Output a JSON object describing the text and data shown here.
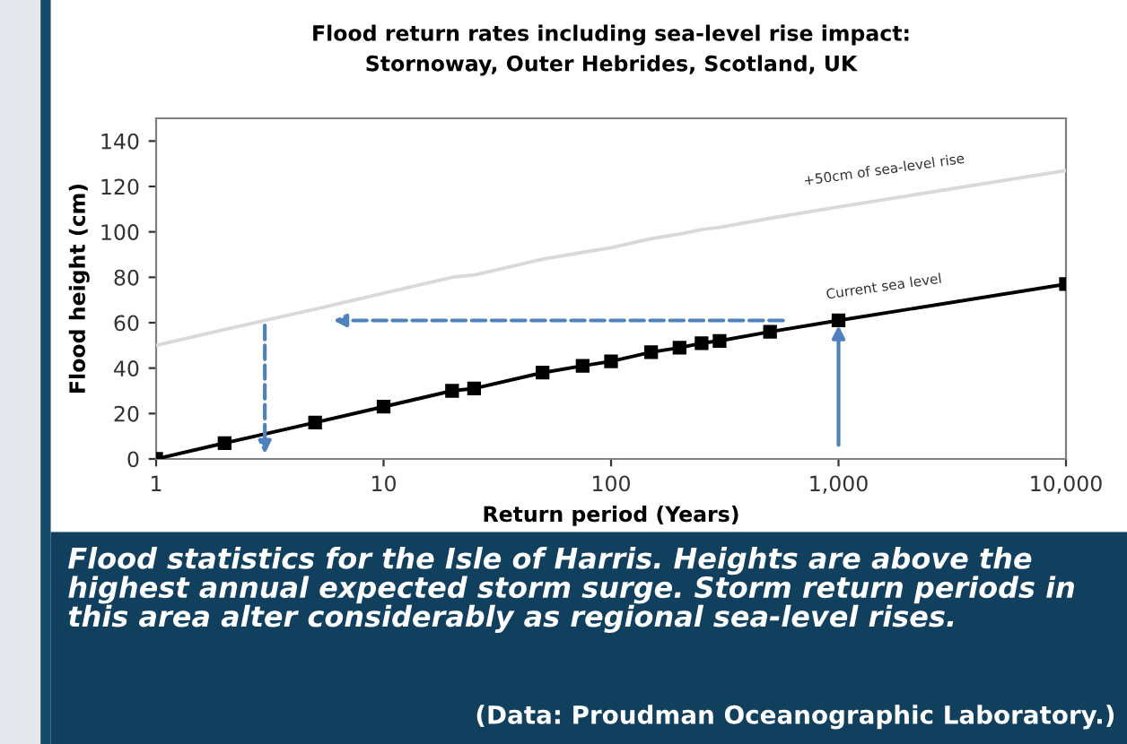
{
  "chart_data": {
    "type": "line",
    "title": "Flood return rates including sea-level rise impact:\nStornoway, Outer Hebrides, Scotland, UK",
    "xlabel": "Return period (Years)",
    "ylabel": "Flood height (cm)",
    "log": "x",
    "xlim": [
      1,
      10000
    ],
    "xticks": [
      {
        "value": 1,
        "label": "1"
      },
      {
        "value": 10,
        "label": "10"
      },
      {
        "value": 100,
        "label": "100"
      },
      {
        "value": 1000,
        "label": "1,000"
      },
      {
        "value": 10000,
        "label": "10,000"
      }
    ],
    "ylim": [
      0,
      150
    ],
    "yticks": [
      0,
      20,
      40,
      60,
      80,
      100,
      120,
      140
    ],
    "grid": false,
    "legend": false,
    "series": [
      {
        "name": "+50cm of sea-level rise",
        "color": "#d9d9d9",
        "marker": "none",
        "x": [
          1,
          2,
          5,
          10,
          20,
          25,
          50,
          75,
          100,
          150,
          200,
          250,
          300,
          500,
          1000,
          10000
        ],
        "values": [
          50,
          57,
          66,
          73,
          80,
          81,
          88,
          91,
          93,
          97,
          99,
          101,
          102,
          106,
          111,
          127
        ]
      },
      {
        "name": "Current sea level",
        "color": "#000000",
        "marker": "square",
        "x": [
          1,
          2,
          5,
          10,
          20,
          25,
          50,
          75,
          100,
          150,
          200,
          250,
          300,
          500,
          1000,
          10000
        ],
        "values": [
          0,
          7,
          16,
          23,
          30,
          31,
          38,
          41,
          43,
          47,
          49,
          51,
          52,
          56,
          61,
          77
        ]
      }
    ],
    "annotations": [
      "Flood statistics for the Isle of Harris. Heights are above the highest annual expected storm surge. Storm return periods in this area alter considerably as regional sea-level rises.",
      "(Data: Proudman Oceanographic Laboratory.)"
    ]
  }
}
